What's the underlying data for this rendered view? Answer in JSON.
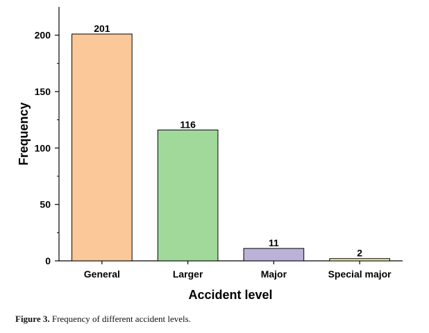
{
  "chart_data": {
    "type": "bar",
    "categories": [
      "General",
      "Larger",
      "Major",
      "Special major"
    ],
    "values": [
      201,
      116,
      11,
      2
    ],
    "data_labels": [
      "201",
      "116",
      "11",
      "2"
    ],
    "colors": [
      "#fbc899",
      "#a1d99b",
      "#bcb1d8",
      "#f2f0a8"
    ],
    "xlabel": "Accident level",
    "ylabel": "Frequency",
    "ylim": [
      0,
      225
    ],
    "yticks": [
      0,
      50,
      100,
      150,
      200
    ],
    "grid": false
  },
  "caption": {
    "label": "Figure 3.",
    "text": " Frequency of different accident levels."
  }
}
